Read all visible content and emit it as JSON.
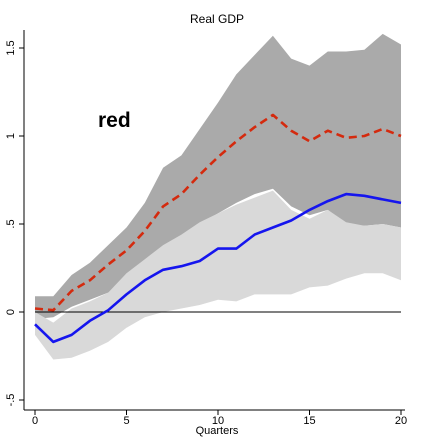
{
  "chart_data": {
    "type": "line",
    "title": "Real GDP",
    "xlabel": "Quarters",
    "ylabel": "",
    "xlim": [
      0,
      20
    ],
    "ylim": [
      -0.5,
      1.55
    ],
    "xticks": [
      "0",
      "5",
      "10",
      "15",
      "20"
    ],
    "yticks": [
      "-.5",
      "0",
      ".5",
      "1",
      "1.5"
    ],
    "annotation": {
      "text": "red",
      "color": "#d42a0e"
    },
    "grid": false,
    "legend": "none",
    "x": [
      0,
      1,
      2,
      3,
      4,
      5,
      6,
      7,
      8,
      9,
      10,
      11,
      12,
      13,
      14,
      15,
      16,
      17,
      18,
      19,
      20
    ],
    "series": [
      {
        "style": "dashed",
        "color": "#d42a0e",
        "values": [
          0.02,
          0.01,
          0.12,
          0.18,
          0.27,
          0.35,
          0.46,
          0.6,
          0.67,
          0.78,
          0.88,
          0.97,
          1.05,
          1.12,
          1.03,
          0.97,
          1.03,
          0.99,
          1.0,
          1.04,
          1.0
        ],
        "band": {
          "color": "#aaaaaa",
          "lower": [
            -0.04,
            -0.03,
            0.03,
            0.07,
            0.11,
            0.17,
            0.26,
            0.37,
            0.43,
            0.5,
            0.56,
            0.62,
            0.67,
            0.7,
            0.6,
            0.55,
            0.58,
            0.5,
            0.49,
            0.5,
            0.48
          ],
          "upper": [
            0.09,
            0.09,
            0.21,
            0.28,
            0.38,
            0.48,
            0.62,
            0.82,
            0.89,
            1.04,
            1.19,
            1.35,
            1.46,
            1.57,
            1.44,
            1.4,
            1.48,
            1.48,
            1.49,
            1.58,
            1.52
          ]
        }
      },
      {
        "style": "solid",
        "color": "#1515ee",
        "values": [
          -0.07,
          -0.17,
          -0.13,
          -0.05,
          0.01,
          0.1,
          0.18,
          0.24,
          0.26,
          0.29,
          0.36,
          0.36,
          0.44,
          0.48,
          0.52,
          0.58,
          0.63,
          0.67,
          0.66,
          0.64,
          0.62
        ],
        "band": {
          "color": "#d9d9d9",
          "lower": [
            -0.13,
            -0.27,
            -0.26,
            -0.22,
            -0.17,
            -0.09,
            -0.03,
            0.0,
            0.02,
            0.04,
            0.07,
            0.06,
            0.1,
            0.1,
            0.1,
            0.14,
            0.15,
            0.19,
            0.22,
            0.22,
            0.18
          ],
          "upper": [
            0.0,
            -0.06,
            0.02,
            0.06,
            0.11,
            0.22,
            0.3,
            0.38,
            0.44,
            0.51,
            0.56,
            0.61,
            0.65,
            0.69,
            0.58,
            0.53,
            0.58,
            0.51,
            0.49,
            0.5,
            0.48
          ]
        }
      }
    ]
  }
}
